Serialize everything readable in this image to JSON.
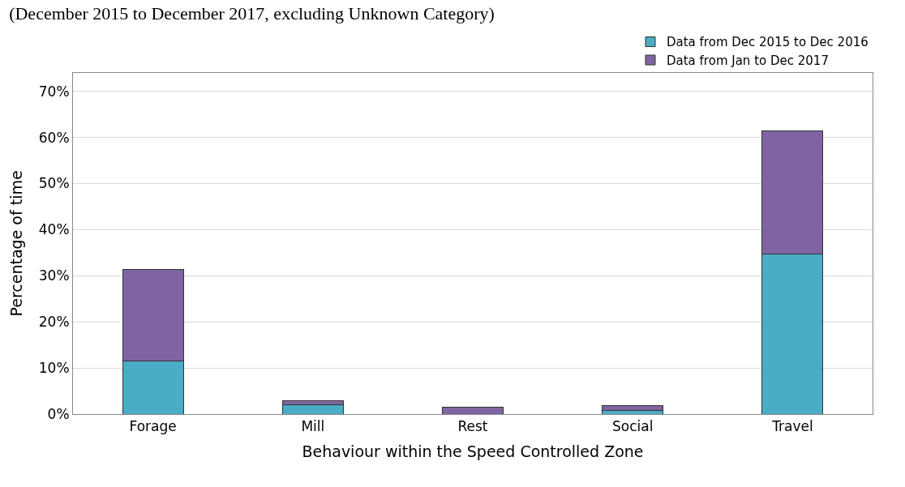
{
  "chart_data": {
    "type": "bar",
    "title": "(December 2015 to December 2017, excluding Unknown Category)",
    "xlabel": "Behaviour within the Speed Controlled Zone",
    "ylabel": "Percentage of time",
    "categories": [
      "Forage",
      "Mill",
      "Rest",
      "Social",
      "Travel"
    ],
    "series": [
      {
        "name": "Data from Dec 2015 to Dec 2016",
        "color": "#4bacc6",
        "values": [
          11.5,
          2.0,
          0,
          0.8,
          34.8
        ]
      },
      {
        "name": "Data from Jan to Dec 2017",
        "color": "#8064a2",
        "values": [
          19.8,
          0.9,
          1.5,
          1.0,
          26.7
        ]
      }
    ],
    "stacked": true,
    "ylim": [
      0,
      74
    ],
    "yticks": [
      {
        "value": 0,
        "label": "0%"
      },
      {
        "value": 10,
        "label": "10%"
      },
      {
        "value": 20,
        "label": "20%"
      },
      {
        "value": 30,
        "label": "30%"
      },
      {
        "value": 40,
        "label": "40%"
      },
      {
        "value": 50,
        "label": "50%"
      },
      {
        "value": 60,
        "label": "60%"
      },
      {
        "value": 70,
        "label": "70%"
      }
    ],
    "grid": "y",
    "legend": "top right"
  }
}
